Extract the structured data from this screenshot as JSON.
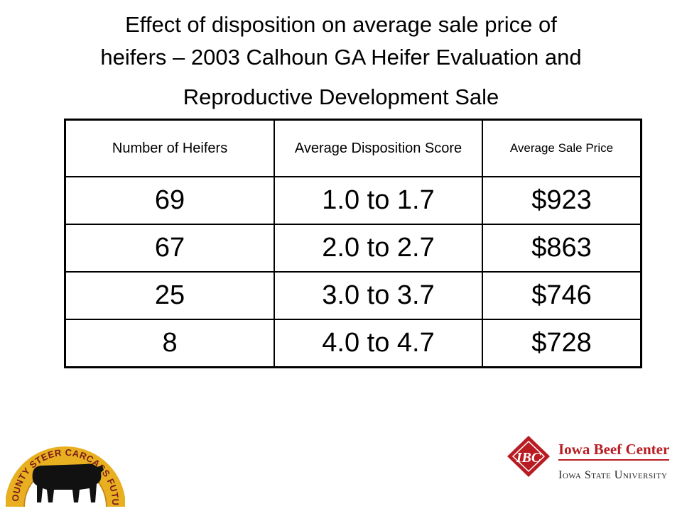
{
  "title": {
    "line1": "Effect of disposition on average sale price of",
    "line2": "heifers – 2003 Calhoun GA Heifer Evaluation and",
    "line3": "Reproductive Development Sale"
  },
  "table": {
    "headers": [
      "Number of Heifers",
      "Average Disposition Score",
      "Average Sale Price"
    ],
    "rows": [
      [
        "69",
        "1.0 to 1.7",
        "$923"
      ],
      [
        "67",
        "2.0 to 2.7",
        "$863"
      ],
      [
        "25",
        "3.0 to 3.7",
        "$746"
      ],
      [
        "8",
        "4.0 to 4.7",
        "$728"
      ]
    ]
  },
  "logo_left": {
    "text": "TRI-COUNTY STEER CARCASS FUTURITY",
    "colors": {
      "ring": "#e8b020",
      "ring_edge": "#c98510",
      "text": "#7a1a1a",
      "bull": "#111111"
    }
  },
  "logo_right": {
    "badge": "IBC",
    "name": "Iowa Beef Center",
    "university": "Iowa State University",
    "colors": {
      "red": "#b81c22",
      "dark": "#222222"
    }
  }
}
